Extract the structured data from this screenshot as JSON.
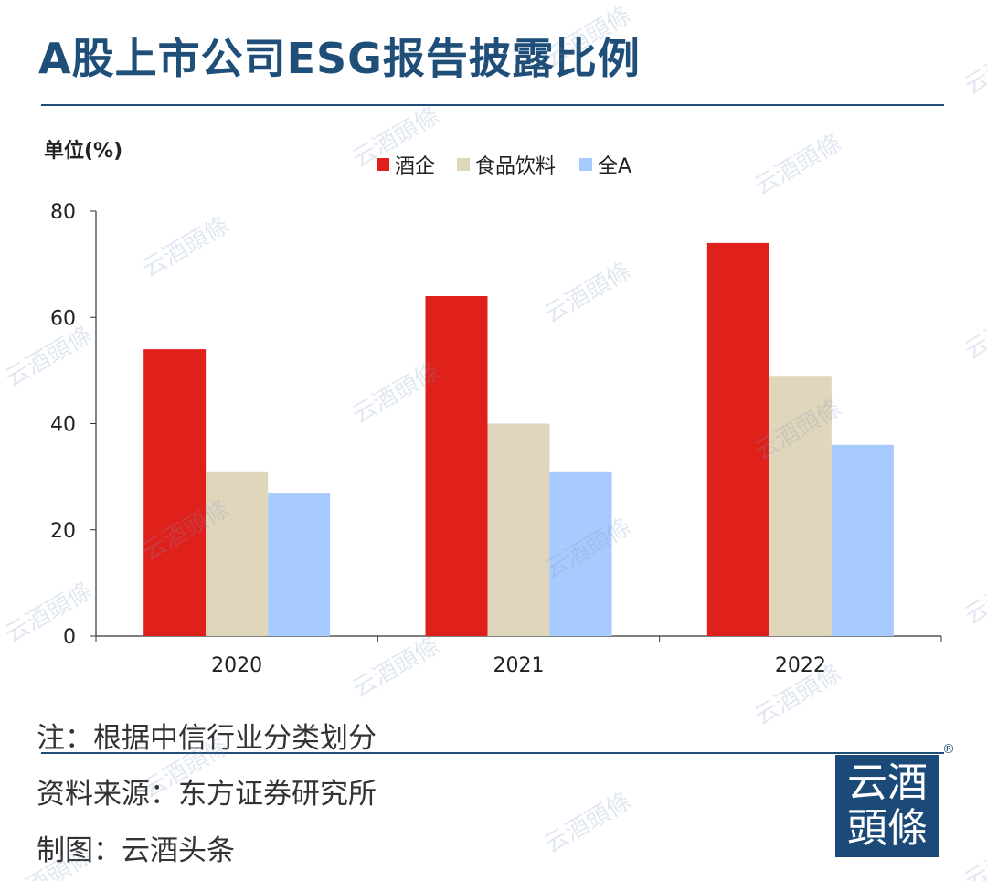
{
  "title": "A股上市公司ESG报告披露比例",
  "chart_data": {
    "type": "bar",
    "title": "A股上市公司ESG报告披露比例",
    "ylabel": "单位(%)",
    "xlabel": "",
    "categories": [
      "2020",
      "2021",
      "2022"
    ],
    "series": [
      {
        "name": "酒企",
        "color": "#e0201a",
        "values": [
          54,
          64,
          74
        ]
      },
      {
        "name": "食品饮料",
        "color": "#e0d6bc",
        "values": [
          31,
          40,
          49
        ]
      },
      {
        "name": "全A",
        "color": "#a8cbff",
        "values": [
          27,
          31,
          36
        ]
      }
    ],
    "ylim": [
      0,
      80
    ],
    "yticks": [
      0,
      20,
      40,
      60,
      80
    ],
    "grid": false,
    "legend": "top-center"
  },
  "notes": {
    "note": "注：根据中信行业分类划分",
    "source": "资料来源：东方证券研究所",
    "maker": "制图：云酒头条"
  },
  "logo": {
    "line1": "云酒",
    "line2": "頭條",
    "reg": "®"
  },
  "watermark": "云酒頭條"
}
